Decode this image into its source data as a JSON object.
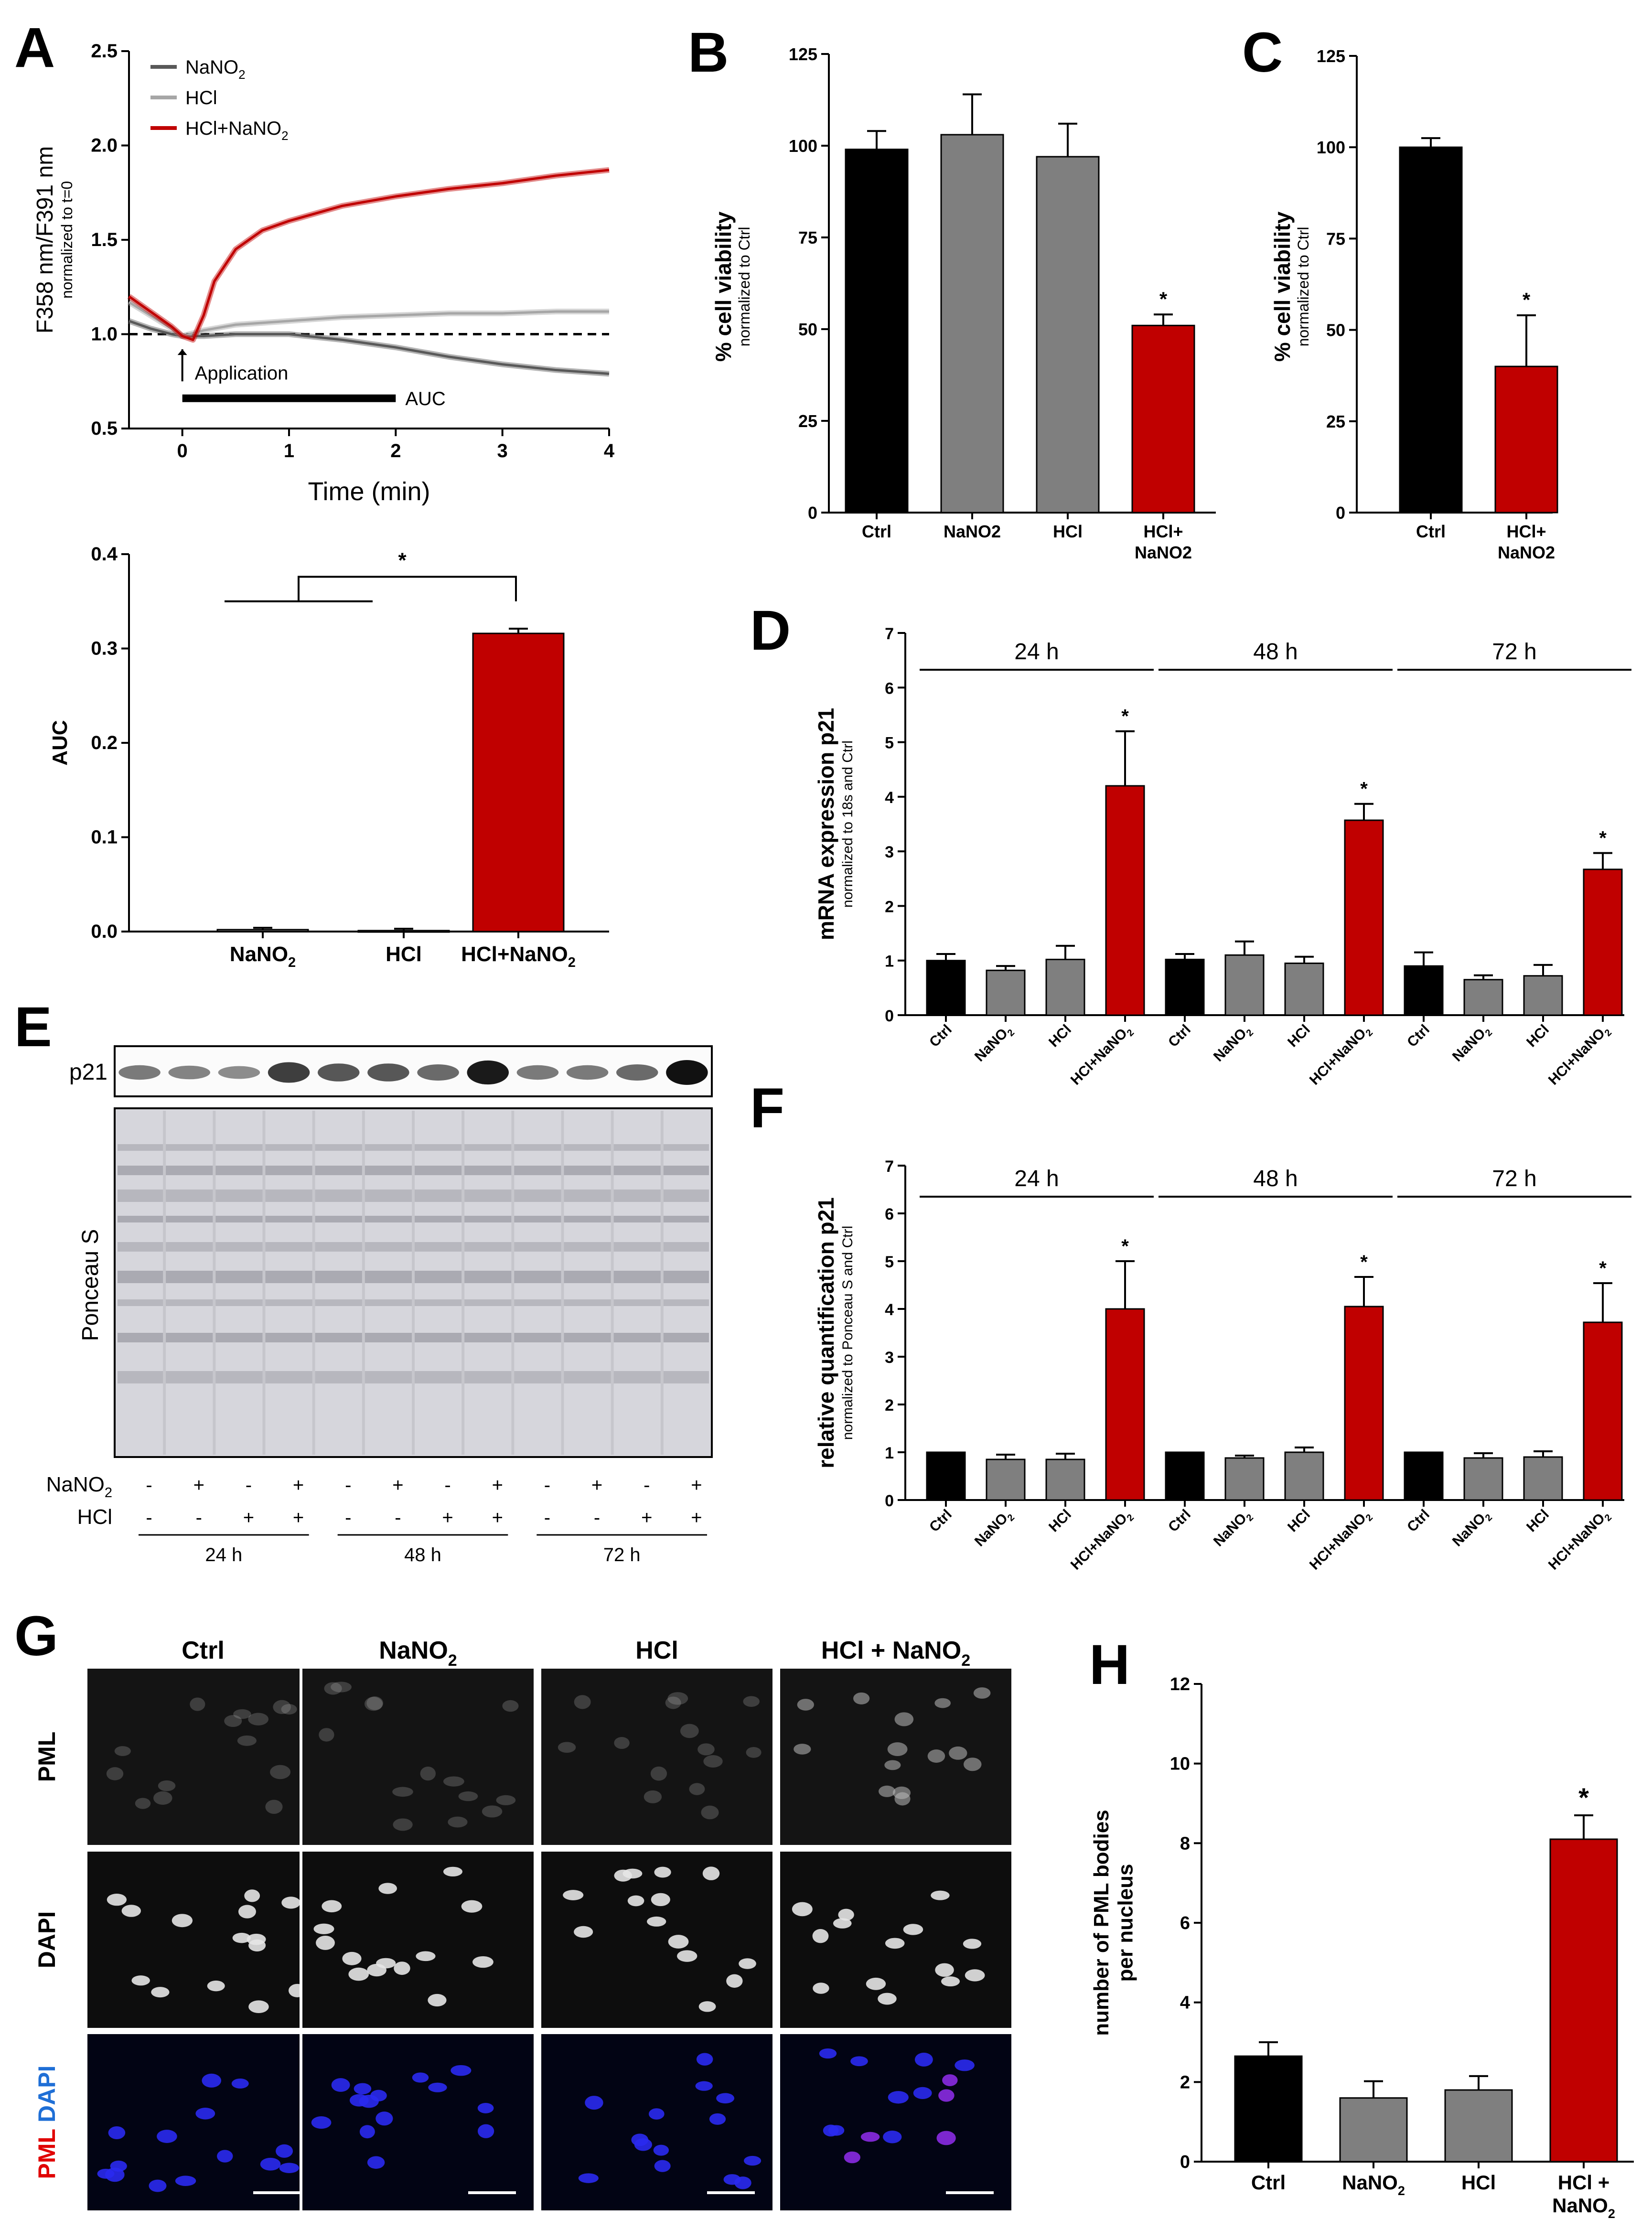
{
  "colors": {
    "black": "#000000",
    "gray": "#7f7f7f",
    "red": "#c00000",
    "dark_gray": "#595959",
    "light_gray": "#a6a6a6"
  },
  "panels": {
    "A": {
      "letter": "A"
    },
    "B": {
      "letter": "B"
    },
    "C": {
      "letter": "C"
    },
    "D": {
      "letter": "D"
    },
    "E": {
      "letter": "E"
    },
    "F": {
      "letter": "F"
    },
    "G": {
      "letter": "G"
    },
    "H": {
      "letter": "H"
    }
  },
  "chart_data": [
    {
      "id": "A_top",
      "type": "line",
      "xlabel": "Time (min)",
      "ylabel": "F358 nm/F391 nm",
      "ylabel_sub": "normalized to t=0",
      "xlim": [
        -0.5,
        4
      ],
      "ylim": [
        0.5,
        2.5
      ],
      "xticks": [
        0,
        1,
        2,
        3,
        4
      ],
      "yticks": [
        0.5,
        1.0,
        1.5,
        2.0,
        2.5
      ],
      "ytick_labels": [
        "0.5",
        "1.0",
        "1.5",
        "2.0",
        "2.5"
      ],
      "legend": [
        {
          "name": "NaNO2",
          "base": "NaNO",
          "sub": "2",
          "color": "#595959"
        },
        {
          "name": "HCl",
          "base": "HCl",
          "sub": "",
          "color": "#a6a6a6"
        },
        {
          "name": "HCl+NaNO2",
          "base": "HCl+NaNO",
          "sub": "2",
          "color": "#c00000"
        }
      ],
      "series": [
        {
          "name": "NaNO2",
          "x": [
            -0.5,
            -0.3,
            -0.1,
            0,
            0.2,
            0.5,
            1,
            1.5,
            2,
            2.5,
            3,
            3.5,
            4
          ],
          "y": [
            1.07,
            1.03,
            1.0,
            0.99,
            0.99,
            1.0,
            1.0,
            0.97,
            0.93,
            0.88,
            0.84,
            0.81,
            0.79
          ]
        },
        {
          "name": "HCl",
          "x": [
            -0.5,
            -0.3,
            -0.1,
            0,
            0.2,
            0.5,
            1,
            1.5,
            2,
            2.5,
            3,
            3.5,
            4
          ],
          "y": [
            1.17,
            1.1,
            1.03,
            0.99,
            1.02,
            1.05,
            1.07,
            1.09,
            1.1,
            1.11,
            1.11,
            1.12,
            1.12
          ]
        },
        {
          "name": "HCl+NaNO2",
          "x": [
            -0.5,
            -0.3,
            -0.1,
            0,
            0.1,
            0.2,
            0.3,
            0.5,
            0.75,
            1,
            1.5,
            2,
            2.5,
            3,
            3.5,
            4
          ],
          "y": [
            1.2,
            1.12,
            1.04,
            0.99,
            0.97,
            1.1,
            1.28,
            1.45,
            1.55,
            1.6,
            1.68,
            1.73,
            1.77,
            1.8,
            1.84,
            1.87
          ]
        }
      ],
      "reference_line": 1.0,
      "annotation_application": "Application",
      "annotation_auc": "AUC",
      "auc_range": [
        0,
        2
      ]
    },
    {
      "id": "A_bottom",
      "type": "bar",
      "ylabel": "AUC",
      "ylim": [
        0,
        0.4
      ],
      "yticks": [
        0.0,
        0.1,
        0.2,
        0.3,
        0.4
      ],
      "ytick_labels": [
        "0.0",
        "0.1",
        "0.2",
        "0.3",
        "0.4"
      ],
      "categories": [
        {
          "base": "NaNO",
          "sub": "2"
        },
        {
          "base": "HCl",
          "sub": ""
        },
        {
          "base": "HCl+NaNO",
          "sub": "2"
        }
      ],
      "values": [
        0.002,
        0.001,
        0.316
      ],
      "errors": [
        0.002,
        0.002,
        0.005
      ],
      "colors": [
        "#7f7f7f",
        "#7f7f7f",
        "#c00000"
      ],
      "significance": "*"
    },
    {
      "id": "B",
      "type": "bar",
      "ylabel": "% cell viability",
      "ylabel_sub": "normalized to Ctrl",
      "ylim": [
        0,
        125
      ],
      "yticks": [
        0,
        25,
        50,
        75,
        100,
        125
      ],
      "ytick_labels": [
        "0",
        "25",
        "50",
        "75",
        "100",
        "125"
      ],
      "categories": [
        [
          "Ctrl"
        ],
        [
          "NaNO2"
        ],
        [
          "HCl"
        ],
        [
          "HCl+",
          "NaNO2"
        ]
      ],
      "values": [
        99,
        103,
        97,
        51
      ],
      "errors": [
        5,
        11,
        9,
        3
      ],
      "colors": [
        "#000000",
        "#7f7f7f",
        "#7f7f7f",
        "#c00000"
      ],
      "stars": [
        "",
        "",
        "",
        "*"
      ]
    },
    {
      "id": "C",
      "type": "bar",
      "ylabel": "% cell viability",
      "ylabel_sub": "normalized to Ctrl",
      "ylim": [
        0,
        125
      ],
      "yticks": [
        0,
        25,
        50,
        75,
        100,
        125
      ],
      "ytick_labels": [
        "0",
        "25",
        "50",
        "75",
        "100",
        "125"
      ],
      "categories": [
        [
          "Ctrl"
        ],
        [
          "HCl+",
          "NaNO2"
        ]
      ],
      "values": [
        100,
        40
      ],
      "errors": [
        2.5,
        14
      ],
      "colors": [
        "#000000",
        "#c00000"
      ],
      "stars": [
        "",
        "*"
      ]
    },
    {
      "id": "D",
      "type": "bar",
      "ylabel": "mRNA expression p21",
      "ylabel_sub": "normalized to 18s and Ctrl",
      "ylim": [
        0,
        7
      ],
      "yticks": [
        0,
        1,
        2,
        3,
        4,
        5,
        6,
        7
      ],
      "ytick_labels": [
        "0",
        "1",
        "2",
        "3",
        "4",
        "5",
        "6",
        "7"
      ],
      "groups": [
        "24 h",
        "48 h",
        "72 h"
      ],
      "categories": [
        "Ctrl",
        "NaNO2",
        "HCl",
        "HCl+NaNO2"
      ],
      "series": [
        {
          "group": "24 h",
          "values": [
            1.0,
            0.82,
            1.02,
            4.2
          ],
          "errors": [
            0.12,
            0.08,
            0.25,
            1.0
          ]
        },
        {
          "group": "48 h",
          "values": [
            1.02,
            1.1,
            0.95,
            3.57
          ],
          "errors": [
            0.1,
            0.25,
            0.12,
            0.3
          ]
        },
        {
          "group": "72 h",
          "values": [
            0.9,
            0.65,
            0.72,
            2.67
          ],
          "errors": [
            0.25,
            0.08,
            0.2,
            0.3
          ]
        }
      ],
      "colors": [
        "#000000",
        "#7f7f7f",
        "#7f7f7f",
        "#c00000"
      ],
      "stars": [
        "",
        "",
        "",
        "*"
      ]
    },
    {
      "id": "E",
      "type": "table",
      "band_label": "p21",
      "stain_label": "Ponceau S",
      "row_labels": [
        {
          "base": "NaNO",
          "sub": "2"
        },
        {
          "base": "HCl",
          "sub": ""
        }
      ],
      "nano2_signs": [
        "-",
        "+",
        "-",
        "+",
        "-",
        "+",
        "-",
        "+",
        "-",
        "+",
        "-",
        "+"
      ],
      "hcl_signs": [
        "-",
        "-",
        "+",
        "+",
        "-",
        "-",
        "+",
        "+",
        "-",
        "-",
        "+",
        "+"
      ],
      "groups": [
        "24 h",
        "48 h",
        "72 h"
      ],
      "band_intensity": [
        0.4,
        0.35,
        0.3,
        0.75,
        0.6,
        0.6,
        0.5,
        0.95,
        0.4,
        0.4,
        0.5,
        1.0
      ]
    },
    {
      "id": "F",
      "type": "bar",
      "ylabel": "relative quantification p21",
      "ylabel_sub": "normalized to Ponceau S and Ctrl",
      "ylim": [
        0,
        7
      ],
      "yticks": [
        0,
        1,
        2,
        3,
        4,
        5,
        6,
        7
      ],
      "ytick_labels": [
        "0",
        "1",
        "2",
        "3",
        "4",
        "5",
        "6",
        "7"
      ],
      "groups": [
        "24 h",
        "48 h",
        "72 h"
      ],
      "categories": [
        "Ctrl",
        "NaNO2",
        "HCl",
        "HCl+NaNO2"
      ],
      "series": [
        {
          "group": "24 h",
          "values": [
            1.0,
            0.85,
            0.85,
            4.0
          ],
          "errors": [
            0,
            0.1,
            0.12,
            1.0
          ]
        },
        {
          "group": "48 h",
          "values": [
            1.0,
            0.88,
            1.0,
            4.05
          ],
          "errors": [
            0,
            0.05,
            0.1,
            0.62
          ]
        },
        {
          "group": "72 h",
          "values": [
            1.0,
            0.88,
            0.9,
            3.72
          ],
          "errors": [
            0,
            0.1,
            0.12,
            0.82
          ]
        }
      ],
      "colors": [
        "#000000",
        "#7f7f7f",
        "#7f7f7f",
        "#c00000"
      ],
      "stars": [
        "",
        "",
        "",
        "*"
      ]
    },
    {
      "id": "G",
      "type": "table",
      "columns": [
        {
          "base": "Ctrl",
          "sub": ""
        },
        {
          "base": "NaNO",
          "sub": "2"
        },
        {
          "base": "HCl",
          "sub": ""
        },
        {
          "base": "HCl + NaNO",
          "sub": "2"
        }
      ],
      "rows": [
        {
          "parts": [
            {
              "text": "PML",
              "color": "#000000"
            }
          ]
        },
        {
          "parts": [
            {
              "text": "DAPI",
              "color": "#000000"
            }
          ]
        },
        {
          "parts": [
            {
              "text": "PML",
              "color": "#e00000"
            },
            {
              "text": "DAPI",
              "color": "#1f6fd6"
            }
          ]
        }
      ]
    },
    {
      "id": "H",
      "type": "bar",
      "ylabel": "number of PML bodies",
      "ylabel2": "per nucleus",
      "ylim": [
        0,
        12
      ],
      "yticks": [
        0,
        2,
        4,
        6,
        8,
        10,
        12
      ],
      "ytick_labels": [
        "0",
        "2",
        "4",
        "6",
        "8",
        "10",
        "12"
      ],
      "categories": [
        [
          {
            "base": "Ctrl",
            "sub": ""
          }
        ],
        [
          {
            "base": "NaNO",
            "sub": "2"
          }
        ],
        [
          {
            "base": "HCl",
            "sub": ""
          }
        ],
        [
          {
            "base": "HCl +",
            "sub": ""
          },
          {
            "base": "NaNO",
            "sub": "2"
          }
        ]
      ],
      "values": [
        2.65,
        1.6,
        1.8,
        8.1
      ],
      "errors": [
        0.35,
        0.42,
        0.35,
        0.6
      ],
      "colors": [
        "#000000",
        "#7f7f7f",
        "#7f7f7f",
        "#c00000"
      ],
      "stars": [
        "",
        "",
        "",
        "*"
      ]
    }
  ]
}
